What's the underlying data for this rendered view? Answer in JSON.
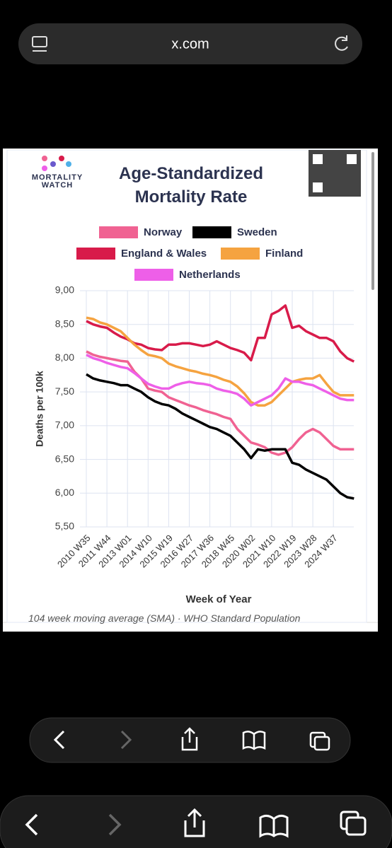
{
  "browser": {
    "url": "x.com"
  },
  "logo_text": "MORTALITY WATCH",
  "chart_data": {
    "type": "line",
    "title": "Age-Standardized Mortality Rate",
    "xlabel": "Week of Year",
    "ylabel": "Deaths per 100k",
    "footnote": "104 week moving average (SMA) · WHO Standard Population",
    "categories": [
      "2010 W35",
      null,
      null,
      "2011 W44",
      null,
      null,
      "2013 W01",
      null,
      null,
      "2014 W10",
      null,
      null,
      "2015 W19",
      null,
      null,
      "2016 W27",
      null,
      null,
      "2017 W36",
      null,
      null,
      "2018 W45",
      null,
      null,
      "2020 W02",
      null,
      null,
      "2021 W10",
      null,
      null,
      "2022 W19",
      null,
      null,
      "2023 W28",
      null,
      null,
      "2024 W37",
      null,
      null,
      null
    ],
    "ylim": [
      5.5,
      9.0
    ],
    "yticks": [
      {
        "value": 5.5,
        "label": "5,50"
      },
      {
        "value": 6,
        "label": "6,00"
      },
      {
        "value": 6.5,
        "label": "6,50"
      },
      {
        "value": 7,
        "label": "7,00"
      },
      {
        "value": 7.5,
        "label": "7,50"
      },
      {
        "value": 8,
        "label": "8,00"
      },
      {
        "value": 8.5,
        "label": "8,50"
      },
      {
        "value": 9,
        "label": "9,00"
      }
    ],
    "grid": true,
    "series": [
      {
        "name": "Norway",
        "color": "#f06292",
        "values": [
          8.1,
          8.05,
          8.02,
          8.0,
          7.98,
          7.96,
          7.95,
          7.8,
          7.7,
          7.55,
          7.52,
          7.5,
          7.42,
          7.38,
          7.34,
          7.3,
          7.27,
          7.23,
          7.2,
          7.17,
          7.13,
          7.1,
          6.95,
          6.85,
          6.75,
          6.72,
          6.68,
          6.6,
          6.57,
          6.6,
          6.68,
          6.8,
          6.9,
          6.95,
          6.9,
          6.8,
          6.7,
          6.65,
          6.65,
          6.65
        ]
      },
      {
        "name": "Sweden",
        "color": "#000000",
        "values": [
          7.76,
          7.7,
          7.67,
          7.65,
          7.63,
          7.6,
          7.6,
          7.55,
          7.5,
          7.42,
          7.36,
          7.32,
          7.3,
          7.25,
          7.18,
          7.13,
          7.08,
          7.03,
          6.98,
          6.95,
          6.9,
          6.85,
          6.75,
          6.65,
          6.52,
          6.65,
          6.63,
          6.65,
          6.65,
          6.65,
          6.45,
          6.42,
          6.35,
          6.3,
          6.25,
          6.2,
          6.1,
          6.0,
          5.94,
          5.92
        ]
      },
      {
        "name": "England & Wales",
        "color": "#d81b4a",
        "values": [
          8.55,
          8.5,
          8.47,
          8.45,
          8.38,
          8.32,
          8.28,
          8.22,
          8.2,
          8.15,
          8.13,
          8.12,
          8.2,
          8.2,
          8.22,
          8.22,
          8.2,
          8.18,
          8.2,
          8.25,
          8.2,
          8.15,
          8.12,
          8.08,
          7.97,
          8.3,
          8.3,
          8.65,
          8.7,
          8.78,
          8.45,
          8.48,
          8.4,
          8.35,
          8.3,
          8.3,
          8.25,
          8.1,
          8.0,
          7.95
        ]
      },
      {
        "name": "Finland",
        "color": "#f5a340",
        "values": [
          8.6,
          8.58,
          8.53,
          8.5,
          8.45,
          8.4,
          8.3,
          8.2,
          8.12,
          8.05,
          8.03,
          8.0,
          7.92,
          7.88,
          7.85,
          7.82,
          7.8,
          7.77,
          7.75,
          7.72,
          7.68,
          7.65,
          7.58,
          7.48,
          7.35,
          7.3,
          7.3,
          7.35,
          7.45,
          7.55,
          7.65,
          7.68,
          7.7,
          7.7,
          7.75,
          7.62,
          7.5,
          7.45,
          7.45,
          7.45
        ]
      },
      {
        "name": "Netherlands",
        "color": "#ee5fe8",
        "values": [
          8.05,
          8.0,
          7.97,
          7.93,
          7.9,
          7.87,
          7.85,
          7.78,
          7.7,
          7.62,
          7.58,
          7.55,
          7.55,
          7.6,
          7.63,
          7.65,
          7.63,
          7.62,
          7.6,
          7.55,
          7.52,
          7.5,
          7.47,
          7.4,
          7.3,
          7.35,
          7.4,
          7.45,
          7.55,
          7.7,
          7.65,
          7.65,
          7.62,
          7.6,
          7.55,
          7.5,
          7.45,
          7.4,
          7.38,
          7.38
        ]
      }
    ]
  }
}
